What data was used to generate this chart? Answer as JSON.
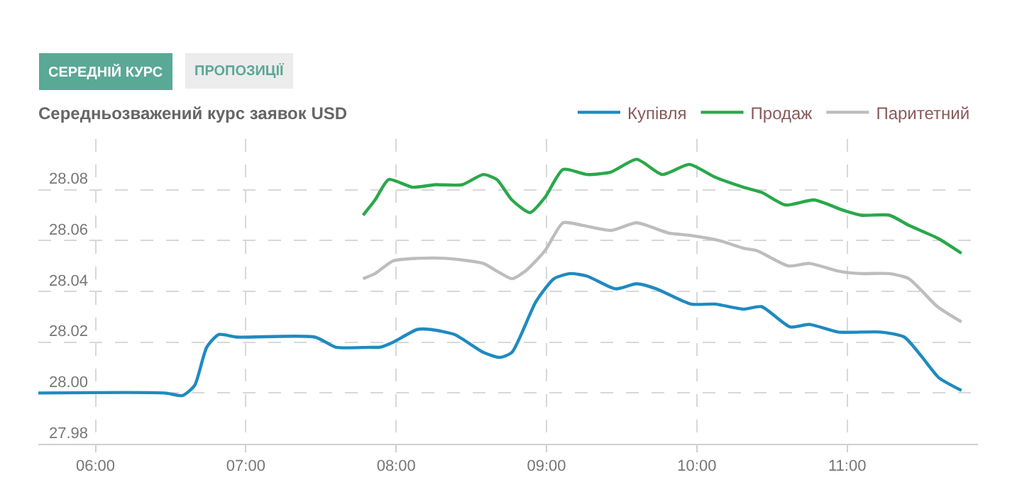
{
  "chart_data": {
    "type": "line",
    "title": "Середньозважений курс заявок USD",
    "annotations": [
      "СЕРЕДНІЙ КУРС",
      "ПРОПОЗИЦІЇ"
    ],
    "xlim": [
      5.62,
      11.87
    ],
    "xticks": [
      {
        "value": 6,
        "label": "06:00"
      },
      {
        "value": 7,
        "label": "07:00"
      },
      {
        "value": 8,
        "label": "08:00"
      },
      {
        "value": 9,
        "label": "09:00"
      },
      {
        "value": 10,
        "label": "10:00"
      },
      {
        "value": 11,
        "label": "11:00"
      }
    ],
    "ylim": [
      27.98,
      28.1
    ],
    "yticks": [
      {
        "value": 27.98,
        "label": "27.98"
      },
      {
        "value": 28.0,
        "label": "28.00"
      },
      {
        "value": 28.02,
        "label": "28.02"
      },
      {
        "value": 28.04,
        "label": "28.04"
      },
      {
        "value": 28.06,
        "label": "28.06"
      },
      {
        "value": 28.08,
        "label": "28.08"
      }
    ],
    "grid": true,
    "legend": "top right",
    "marker": "none",
    "line_style": "solid",
    "series": [
      {
        "name": "Купівля",
        "color": "#1f8ac0",
        "x": [
          5.62,
          6.46,
          6.58,
          6.66,
          6.74,
          6.82,
          6.94,
          7.46,
          7.6,
          7.82,
          7.89,
          7.98,
          8.14,
          8.23,
          8.39,
          8.58,
          8.69,
          8.77,
          8.93,
          9.05,
          9.16,
          9.27,
          9.46,
          9.6,
          9.73,
          9.96,
          10.12,
          10.31,
          10.43,
          10.62,
          10.75,
          10.94,
          11.22,
          11.38,
          11.5,
          11.61,
          11.76
        ],
        "values": [
          28.0,
          28.0,
          27.999,
          28.003,
          28.018,
          28.023,
          28.022,
          28.022,
          28.018,
          28.018,
          28.018,
          28.02,
          28.025,
          28.025,
          28.023,
          28.016,
          28.014,
          28.016,
          28.036,
          28.045,
          28.047,
          28.046,
          28.041,
          28.043,
          28.041,
          28.035,
          28.035,
          28.033,
          28.034,
          28.026,
          28.027,
          28.024,
          28.024,
          28.022,
          28.014,
          28.006,
          28.001
        ]
      },
      {
        "name": "Продаж",
        "color": "#2aa84a",
        "x": [
          7.78,
          7.86,
          7.95,
          8.11,
          8.26,
          8.44,
          8.58,
          8.67,
          8.77,
          8.89,
          8.99,
          9.11,
          9.27,
          9.43,
          9.6,
          9.77,
          9.95,
          10.12,
          10.31,
          10.43,
          10.59,
          10.78,
          10.97,
          11.09,
          11.28,
          11.41,
          11.6,
          11.76
        ],
        "values": [
          28.07,
          28.076,
          28.084,
          28.081,
          28.082,
          28.082,
          28.086,
          28.084,
          28.076,
          28.071,
          28.077,
          28.088,
          28.086,
          28.087,
          28.092,
          28.086,
          28.09,
          28.085,
          28.081,
          28.079,
          28.074,
          28.076,
          28.072,
          28.07,
          28.07,
          28.066,
          28.061,
          28.055
        ]
      },
      {
        "name": "Паритетний",
        "color": "#bdbdbd",
        "x": [
          7.78,
          7.86,
          7.98,
          8.14,
          8.33,
          8.58,
          8.67,
          8.77,
          8.86,
          8.99,
          9.11,
          9.24,
          9.43,
          9.6,
          9.81,
          9.96,
          10.15,
          10.31,
          10.4,
          10.61,
          10.75,
          10.94,
          11.09,
          11.28,
          11.41,
          11.6,
          11.76
        ],
        "values": [
          28.045,
          28.047,
          28.052,
          28.053,
          28.053,
          28.051,
          28.048,
          28.045,
          28.048,
          28.056,
          28.067,
          28.066,
          28.064,
          28.067,
          28.063,
          28.062,
          28.06,
          28.057,
          28.056,
          28.05,
          28.051,
          28.048,
          28.047,
          28.047,
          28.045,
          28.034,
          28.028
        ]
      }
    ]
  }
}
